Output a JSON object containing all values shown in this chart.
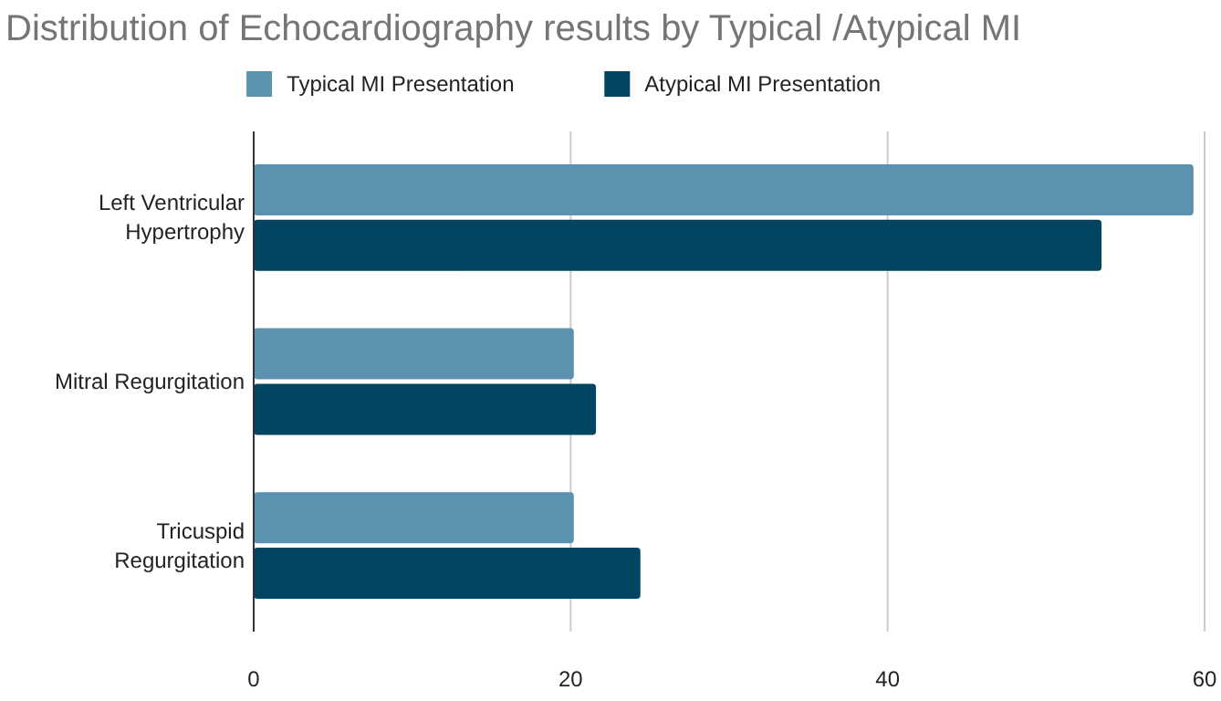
{
  "chart_data": {
    "type": "bar",
    "orientation": "horizontal",
    "title": "Distribution of Echocardiography results by Typical /Atypical MI",
    "categories": [
      "Left Ventricular Hypertrophy",
      "Mitral Regurgitation",
      "Tricuspid Regurgitation"
    ],
    "series": [
      {
        "name": "Typical MI Presentation",
        "color": "#5b92b0",
        "values": [
          59.3,
          20.2,
          20.2
        ]
      },
      {
        "name": "Atypical MI Presentation",
        "color": "#024562",
        "values": [
          53.5,
          21.6,
          24.4
        ]
      }
    ],
    "xlim": [
      0,
      60
    ],
    "xticks": [
      0,
      20,
      40,
      60
    ],
    "grid": "x",
    "legend": "top"
  }
}
